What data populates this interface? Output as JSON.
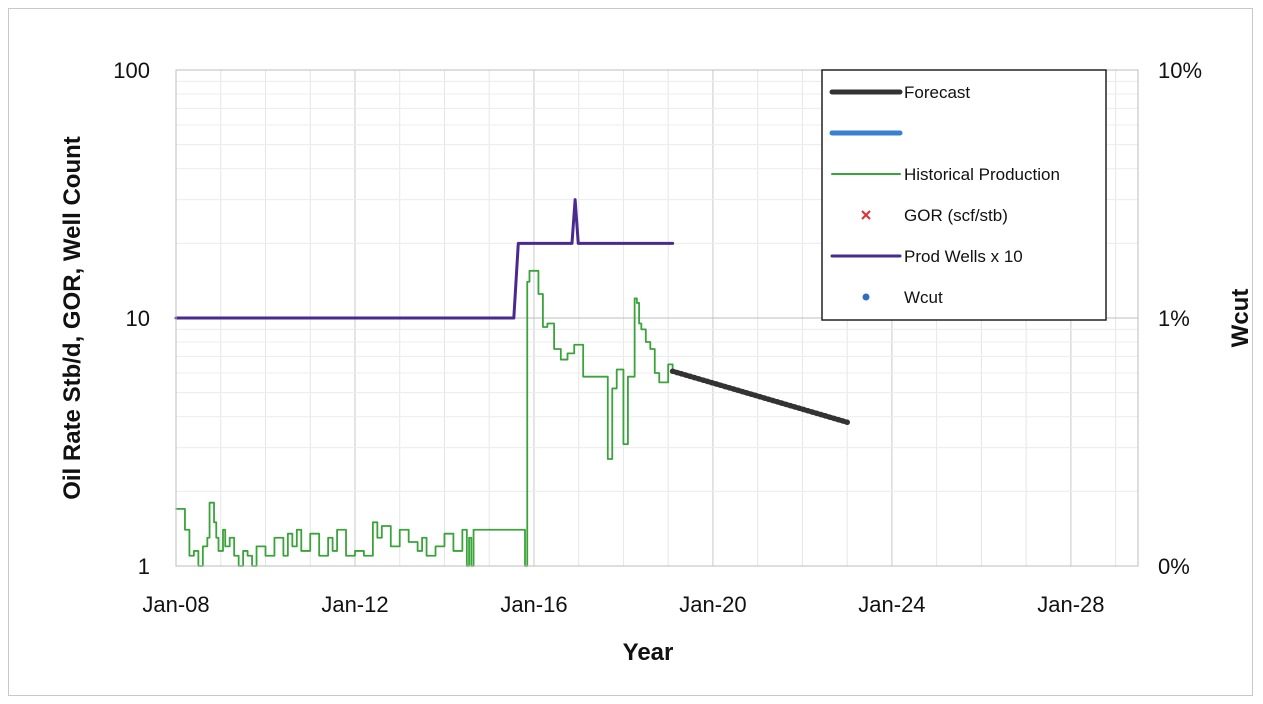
{
  "chart_data": {
    "type": "line",
    "title": "",
    "xlabel": "Year",
    "ylabel": "Oil Rate Stb/d, GOR, Well Count",
    "y2label": "Wcut",
    "yscale": "log",
    "ylim": [
      1,
      100
    ],
    "y2lim": [
      "0%",
      "10%"
    ],
    "grid": true,
    "legend_position": "top-right",
    "x_ticks": [
      "Jan-08",
      "Jan-12",
      "Jan-16",
      "Jan-20",
      "Jan-24",
      "Jan-28"
    ],
    "y_ticks": [
      "1",
      "10",
      "100"
    ],
    "y2_ticks": [
      "0%",
      "1%",
      "10%"
    ],
    "legend": [
      {
        "label": "Forecast",
        "kind": "line",
        "color": "#333333",
        "width": 5
      },
      {
        "label": "",
        "kind": "line",
        "color": "#3a7fd1",
        "width": 5
      },
      {
        "label": "Historical Production",
        "kind": "line",
        "color": "#3aa33a",
        "width": 2
      },
      {
        "label": "GOR (scf/stb)",
        "kind": "x",
        "color": "#e03030"
      },
      {
        "label": "Prod Wells x 10",
        "kind": "line",
        "color": "#4b2a8f",
        "width": 3
      },
      {
        "label": "Wcut",
        "kind": "dot",
        "color": "#2f6fc0"
      }
    ],
    "series": [
      {
        "name": "Prod Wells x 10",
        "color": "#4b2a8f",
        "x": [
          2008.0,
          2015.55,
          2015.65,
          2016.85,
          2016.92,
          2016.99,
          2017.1,
          2019.1
        ],
        "values": [
          10,
          10,
          20,
          20,
          30,
          20,
          20,
          20
        ]
      },
      {
        "name": "Historical Production",
        "color": "#3aa33a",
        "x": [
          2008.0,
          2008.05,
          2008.2,
          2008.3,
          2008.4,
          2008.5,
          2008.6,
          2008.7,
          2008.75,
          2008.85,
          2008.9,
          2008.95,
          2009.05,
          2009.1,
          2009.2,
          2009.3,
          2009.4,
          2009.5,
          2009.6,
          2009.7,
          2009.8,
          2010.0,
          2010.2,
          2010.4,
          2010.5,
          2010.6,
          2010.7,
          2010.8,
          2011.0,
          2011.2,
          2011.4,
          2011.5,
          2011.6,
          2011.8,
          2012.0,
          2012.2,
          2012.4,
          2012.5,
          2012.6,
          2012.8,
          2013.0,
          2013.2,
          2013.4,
          2013.5,
          2013.6,
          2013.8,
          2014.0,
          2014.2,
          2014.4,
          2014.5,
          2014.55,
          2014.6,
          2014.65,
          2015.8,
          2015.85,
          2015.9,
          2016.0,
          2016.1,
          2016.2,
          2016.3,
          2016.45,
          2016.6,
          2016.75,
          2016.9,
          2017.1,
          2017.3,
          2017.6,
          2017.65,
          2017.75,
          2017.85,
          2018.0,
          2018.1,
          2018.2,
          2018.25,
          2018.3,
          2018.35,
          2018.4,
          2018.5,
          2018.6,
          2018.7,
          2018.8,
          2018.9,
          2019.0,
          2019.1
        ],
        "values": [
          1.7,
          1.7,
          1.4,
          1.1,
          1.15,
          1.0,
          1.2,
          1.3,
          1.8,
          1.5,
          1.3,
          1.15,
          1.4,
          1.2,
          1.3,
          1.1,
          1.0,
          1.15,
          1.1,
          1.0,
          1.2,
          1.1,
          1.3,
          1.1,
          1.35,
          1.2,
          1.4,
          1.15,
          1.35,
          1.1,
          1.3,
          1.15,
          1.4,
          1.1,
          1.15,
          1.1,
          1.5,
          1.3,
          1.45,
          1.2,
          1.4,
          1.25,
          1.15,
          1.3,
          1.1,
          1.2,
          1.35,
          1.15,
          1.4,
          1.0,
          1.3,
          1.0,
          1.4,
          1.0,
          14.0,
          15.5,
          15.5,
          12.5,
          9.2,
          9.5,
          7.5,
          6.8,
          7.2,
          7.8,
          5.8,
          5.8,
          5.8,
          2.7,
          5.2,
          6.2,
          3.1,
          5.8,
          5.8,
          12.0,
          11.5,
          9.5,
          9.0,
          8.0,
          7.5,
          6.0,
          5.5,
          5.5,
          6.5,
          6.0
        ]
      },
      {
        "name": "Forecast",
        "color": "#333333",
        "x": [
          2019.1,
          2023.0
        ],
        "values": [
          6.1,
          3.8
        ]
      }
    ]
  }
}
